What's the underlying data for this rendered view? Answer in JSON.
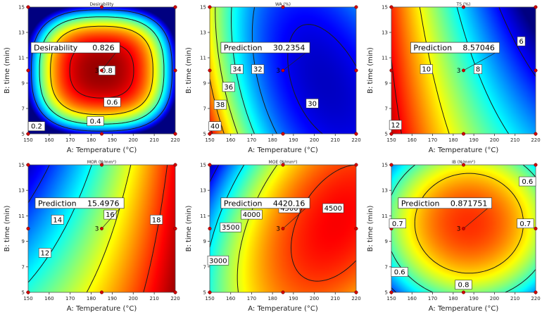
{
  "chart_data": [
    {
      "type": "contour",
      "title": "Desirability",
      "xlabel": "A: Temperature (°C)",
      "ylabel": "B: time (min)",
      "xlim": [
        150,
        220
      ],
      "ylim": [
        5,
        15
      ],
      "x_ticks": [
        "150",
        "160",
        "170",
        "180",
        "190",
        "200",
        "210",
        "220"
      ],
      "y_ticks": [
        "5",
        "7",
        "9",
        "11",
        "13",
        "15"
      ],
      "contour_levels": [
        0.2,
        0.4,
        0.6,
        0.8
      ],
      "contour_labels": [
        {
          "text": "0.2",
          "x": 154,
          "y": 5.6
        },
        {
          "text": "0.4",
          "x": 182,
          "y": 6.0
        },
        {
          "text": "0.6",
          "x": 190,
          "y": 7.5
        },
        {
          "text": "0.8",
          "x": 187.5,
          "y": 10
        }
      ],
      "prediction": {
        "label": "Desirability",
        "value": "0.826",
        "x": 185,
        "y": 10,
        "anchor": [
          150,
          11.8
        ]
      },
      "design_points": [
        [
          150,
          5
        ],
        [
          150,
          10
        ],
        [
          150,
          15
        ],
        [
          185,
          5
        ],
        [
          185,
          15
        ],
        [
          220,
          5
        ],
        [
          220,
          10
        ],
        [
          220,
          15
        ]
      ],
      "center_replicates": "3",
      "colorscale_range": [
        0,
        0.9
      ]
    },
    {
      "type": "contour",
      "title": "WA (%)",
      "xlabel": "A: Temperature (°C)",
      "ylabel": "B: time (min)",
      "xlim": [
        150,
        220
      ],
      "ylim": [
        5,
        15
      ],
      "x_ticks": [
        "150",
        "160",
        "170",
        "180",
        "190",
        "200",
        "210",
        "220"
      ],
      "y_ticks": [
        "5",
        "7",
        "9",
        "11",
        "13",
        "15"
      ],
      "contour_levels": [
        30,
        32,
        34,
        36,
        38,
        40
      ],
      "contour_labels": [
        {
          "text": "40",
          "x": 152.5,
          "y": 5.6
        },
        {
          "text": "38",
          "x": 155,
          "y": 7.3
        },
        {
          "text": "36",
          "x": 159,
          "y": 8.7
        },
        {
          "text": "34",
          "x": 163,
          "y": 10.1
        },
        {
          "text": "32",
          "x": 173,
          "y": 10.1
        },
        {
          "text": "30",
          "x": 199,
          "y": 7.4
        }
      ],
      "prediction": {
        "label": "Prediction",
        "value": "30.2354",
        "x": 185,
        "y": 10,
        "anchor": [
          154,
          11.8
        ]
      },
      "design_points": [
        [
          150,
          5
        ],
        [
          150,
          10
        ],
        [
          150,
          15
        ],
        [
          185,
          5
        ],
        [
          185,
          15
        ],
        [
          220,
          5
        ],
        [
          220,
          10
        ],
        [
          220,
          15
        ]
      ],
      "center_replicates": "3",
      "colorscale_range": [
        28.5,
        42
      ]
    },
    {
      "type": "contour",
      "title": "TS (%)",
      "xlabel": "A: Temperature (°C)",
      "ylabel": "B: time (min)",
      "xlim": [
        150,
        220
      ],
      "ylim": [
        5,
        15
      ],
      "x_ticks": [
        "150",
        "160",
        "170",
        "180",
        "190",
        "200",
        "210",
        "220"
      ],
      "y_ticks": [
        "5",
        "7",
        "9",
        "11",
        "13",
        "15"
      ],
      "contour_levels": [
        6,
        8,
        10,
        12
      ],
      "contour_labels": [
        {
          "text": "12",
          "x": 152,
          "y": 5.7
        },
        {
          "text": "10",
          "x": 167,
          "y": 10.1
        },
        {
          "text": "8",
          "x": 192,
          "y": 10.1
        },
        {
          "text": "6",
          "x": 213,
          "y": 12.3
        }
      ],
      "prediction": {
        "label": "Prediction",
        "value": "8.57046",
        "x": 185,
        "y": 10,
        "anchor": [
          158,
          11.8
        ]
      },
      "design_points": [
        [
          150,
          5
        ],
        [
          150,
          10
        ],
        [
          150,
          15
        ],
        [
          185,
          5
        ],
        [
          185,
          15
        ],
        [
          220,
          5
        ],
        [
          220,
          10
        ],
        [
          220,
          15
        ]
      ],
      "center_replicates": "3",
      "colorscale_range": [
        5,
        13
      ]
    },
    {
      "type": "contour",
      "title": "MOR (N/mm²)",
      "xlabel": "A: Temperature (°C)",
      "ylabel": "B: time (min)",
      "xlim": [
        150,
        220
      ],
      "ylim": [
        5,
        15
      ],
      "x_ticks": [
        "150",
        "160",
        "170",
        "180",
        "190",
        "200",
        "210",
        "220"
      ],
      "y_ticks": [
        "5",
        "7",
        "9",
        "11",
        "13",
        "15"
      ],
      "contour_levels": [
        12,
        14,
        16,
        18
      ],
      "contour_labels": [
        {
          "text": "12",
          "x": 158,
          "y": 8.1
        },
        {
          "text": "14",
          "x": 164,
          "y": 10.7
        },
        {
          "text": "16",
          "x": 189,
          "y": 11.1
        },
        {
          "text": "18",
          "x": 211,
          "y": 10.7
        }
      ],
      "prediction": {
        "label": "Prediction",
        "value": "15.4976",
        "x": 185,
        "y": 10,
        "anchor": [
          152,
          12.0
        ]
      },
      "design_points": [
        [
          150,
          5
        ],
        [
          150,
          10
        ],
        [
          150,
          15
        ],
        [
          185,
          5
        ],
        [
          185,
          15
        ],
        [
          220,
          5
        ],
        [
          220,
          10
        ],
        [
          220,
          15
        ]
      ],
      "center_replicates": "3",
      "colorscale_range": [
        10.5,
        19.5
      ]
    },
    {
      "type": "contour",
      "title": "MOE (N/mm²)",
      "xlabel": "A: Temperature (°C)",
      "ylabel": "B: time (min)",
      "xlim": [
        150,
        220
      ],
      "ylim": [
        5,
        15
      ],
      "x_ticks": [
        "150",
        "160",
        "170",
        "180",
        "190",
        "200",
        "210",
        "220"
      ],
      "y_ticks": [
        "5",
        "7",
        "9",
        "11",
        "13",
        "15"
      ],
      "contour_levels": [
        3000,
        3500,
        4000,
        4500
      ],
      "contour_labels": [
        {
          "text": "3000",
          "x": 154,
          "y": 7.5
        },
        {
          "text": "3500",
          "x": 160,
          "y": 10.1
        },
        {
          "text": "4000",
          "x": 170,
          "y": 11.1
        },
        {
          "text": "4500",
          "x": 188,
          "y": 11.6
        },
        {
          "text": "4500",
          "x": 209,
          "y": 11.6
        }
      ],
      "prediction": {
        "label": "Prediction",
        "value": "4420.16",
        "x": 185,
        "y": 10,
        "anchor": [
          154,
          12.0
        ]
      },
      "design_points": [
        [
          150,
          5
        ],
        [
          150,
          10
        ],
        [
          150,
          15
        ],
        [
          185,
          5
        ],
        [
          185,
          15
        ],
        [
          220,
          5
        ],
        [
          220,
          10
        ],
        [
          220,
          15
        ]
      ],
      "center_replicates": "3",
      "colorscale_range": [
        2700,
        4900
      ]
    },
    {
      "type": "contour",
      "title": "IB (N/mm²)",
      "xlabel": "A: Temperature (°C)",
      "ylabel": "B: time (min)",
      "xlim": [
        150,
        220
      ],
      "ylim": [
        5,
        15
      ],
      "x_ticks": [
        "150",
        "160",
        "170",
        "180",
        "190",
        "200",
        "210",
        "220"
      ],
      "y_ticks": [
        "5",
        "7",
        "9",
        "11",
        "13",
        "15"
      ],
      "contour_levels": [
        0.6,
        0.7,
        0.8
      ],
      "contour_labels": [
        {
          "text": "0.6",
          "x": 216,
          "y": 13.7
        },
        {
          "text": "0.7",
          "x": 153,
          "y": 10.4
        },
        {
          "text": "0.7",
          "x": 215,
          "y": 10.4
        },
        {
          "text": "0.6",
          "x": 154,
          "y": 6.6
        },
        {
          "text": "0.8",
          "x": 185,
          "y": 5.6
        }
      ],
      "prediction": {
        "label": "Prediction",
        "value": "0.871751",
        "x": 185,
        "y": 10,
        "anchor": [
          152,
          12.0
        ]
      },
      "design_points": [
        [
          150,
          5
        ],
        [
          150,
          10
        ],
        [
          150,
          15
        ],
        [
          185,
          5
        ],
        [
          185,
          15
        ],
        [
          220,
          5
        ],
        [
          220,
          10
        ],
        [
          220,
          15
        ]
      ],
      "center_replicates": "3",
      "colorscale_range": [
        0.5,
        0.95
      ]
    }
  ]
}
